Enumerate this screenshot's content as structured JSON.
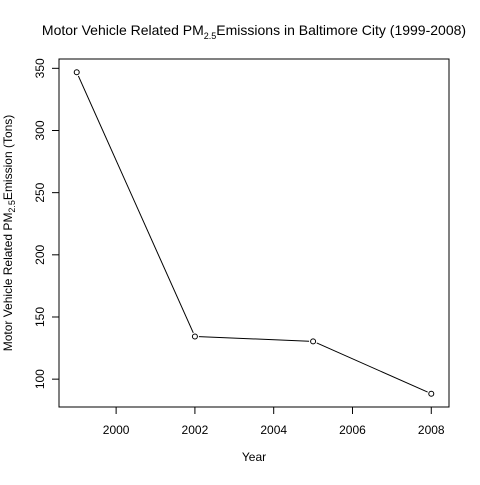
{
  "chart_data": {
    "type": "line",
    "title": {
      "prefix": "Motor Vehicle Related PM",
      "subscript": "2.5",
      "suffix": "Emissions in Baltimore City (1999-2008)"
    },
    "xlabel": "Year",
    "ylabel": {
      "prefix": "Motor Vehicle Related PM",
      "subscript": "2.5",
      "suffix": "Emission (Tons)"
    },
    "x": [
      1999,
      2002,
      2005,
      2008
    ],
    "values": [
      346.8,
      134.3,
      130.4,
      88.3
    ],
    "xlim": [
      1998.55,
      2008.45
    ],
    "ylim": [
      77.6,
      357.5
    ],
    "xticks": [
      2000,
      2002,
      2004,
      2006,
      2008
    ],
    "yticks": [
      100,
      150,
      200,
      250,
      300,
      350
    ],
    "marker": "open-circle",
    "grid": false,
    "legend": "none",
    "line_color": "#000000"
  }
}
